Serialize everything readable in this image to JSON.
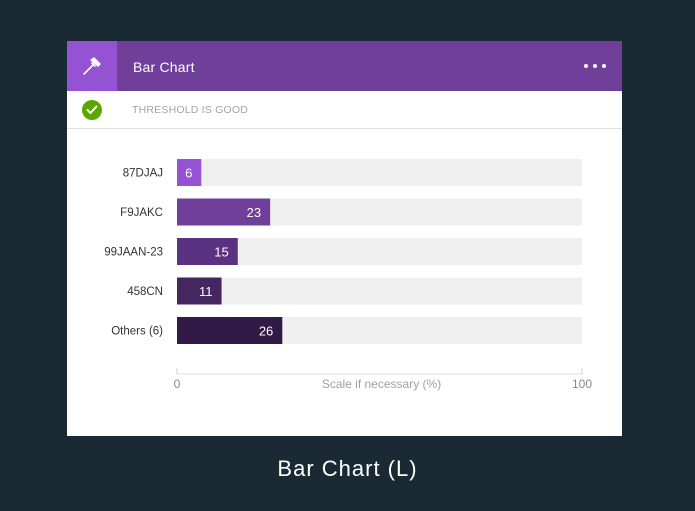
{
  "header": {
    "title": "Bar Chart",
    "icon": "hammer-icon",
    "menu_icon": "more-options-icon"
  },
  "status": {
    "text": "THRESHOLD IS GOOD",
    "icon": "checkmark-circle-icon",
    "color": "#5aa700"
  },
  "chart_data": {
    "type": "bar",
    "orientation": "horizontal",
    "categories": [
      "87DJAJ",
      "F9JAKC",
      "99JAAN-23",
      "458CN",
      "Others (6)"
    ],
    "values": [
      6,
      23,
      15,
      11,
      26
    ],
    "xlabel": "Scale if necessary (%)",
    "xlim": [
      0,
      100
    ],
    "xticks": [
      "0",
      "100"
    ],
    "colors": [
      "#9553d3",
      "#6f3f99",
      "#5b3282",
      "#44275f",
      "#311a45"
    ],
    "track_color": "#efefef"
  },
  "caption": "Bar Chart (L)",
  "colors": {
    "background": "#1a2a35",
    "header": "#6f3f99",
    "header_icon_bg": "#9553d3"
  }
}
